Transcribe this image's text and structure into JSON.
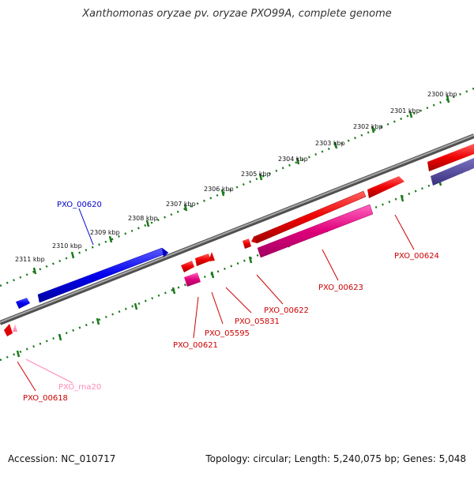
{
  "title": "Xanthomonas oryzae pv. oryzae PXO99A, complete genome",
  "accession": "Accession: NC_010717",
  "summary": "Topology: circular; Length: 5,240,075 bp; Genes: 5,048",
  "ticks": [
    "2300 kbp",
    "2301 kbp",
    "2302 kbp",
    "2303 kbp",
    "2304 kbp",
    "2305 kbp",
    "2306 kbp",
    "2307 kbp",
    "2308 kbp",
    "2309 kbp",
    "2310 kbp",
    "2311 kbp"
  ],
  "genes": [
    {
      "name": "PXO_00620",
      "color": "#0000ff",
      "strand": "forward"
    },
    {
      "name": "PXO_00624",
      "color": "#e00000",
      "strand": "forward"
    },
    {
      "name": "PXO_00623",
      "color": "#e0007a",
      "strand": "forward"
    },
    {
      "name": "PXO_00622",
      "color": "#e00000",
      "strand": "reverse"
    },
    {
      "name": "PXO_05831",
      "color": "#e00000",
      "strand": "forward"
    },
    {
      "name": "PXO_05595",
      "color": "#e00000",
      "strand": "forward"
    },
    {
      "name": "PXO_00621",
      "color": "#e00000",
      "strand": "reverse"
    },
    {
      "name": "PXO_rna20",
      "color": "#ff88bb",
      "strand": "forward"
    },
    {
      "name": "PXO_00618",
      "color": "#e00000",
      "strand": "reverse"
    }
  ],
  "colors": {
    "tick": "#1a7a1a",
    "backbone": "#808080",
    "label_red": "#cc0000",
    "label_blue": "#0000cc",
    "label_pink": "#ff88bb"
  }
}
